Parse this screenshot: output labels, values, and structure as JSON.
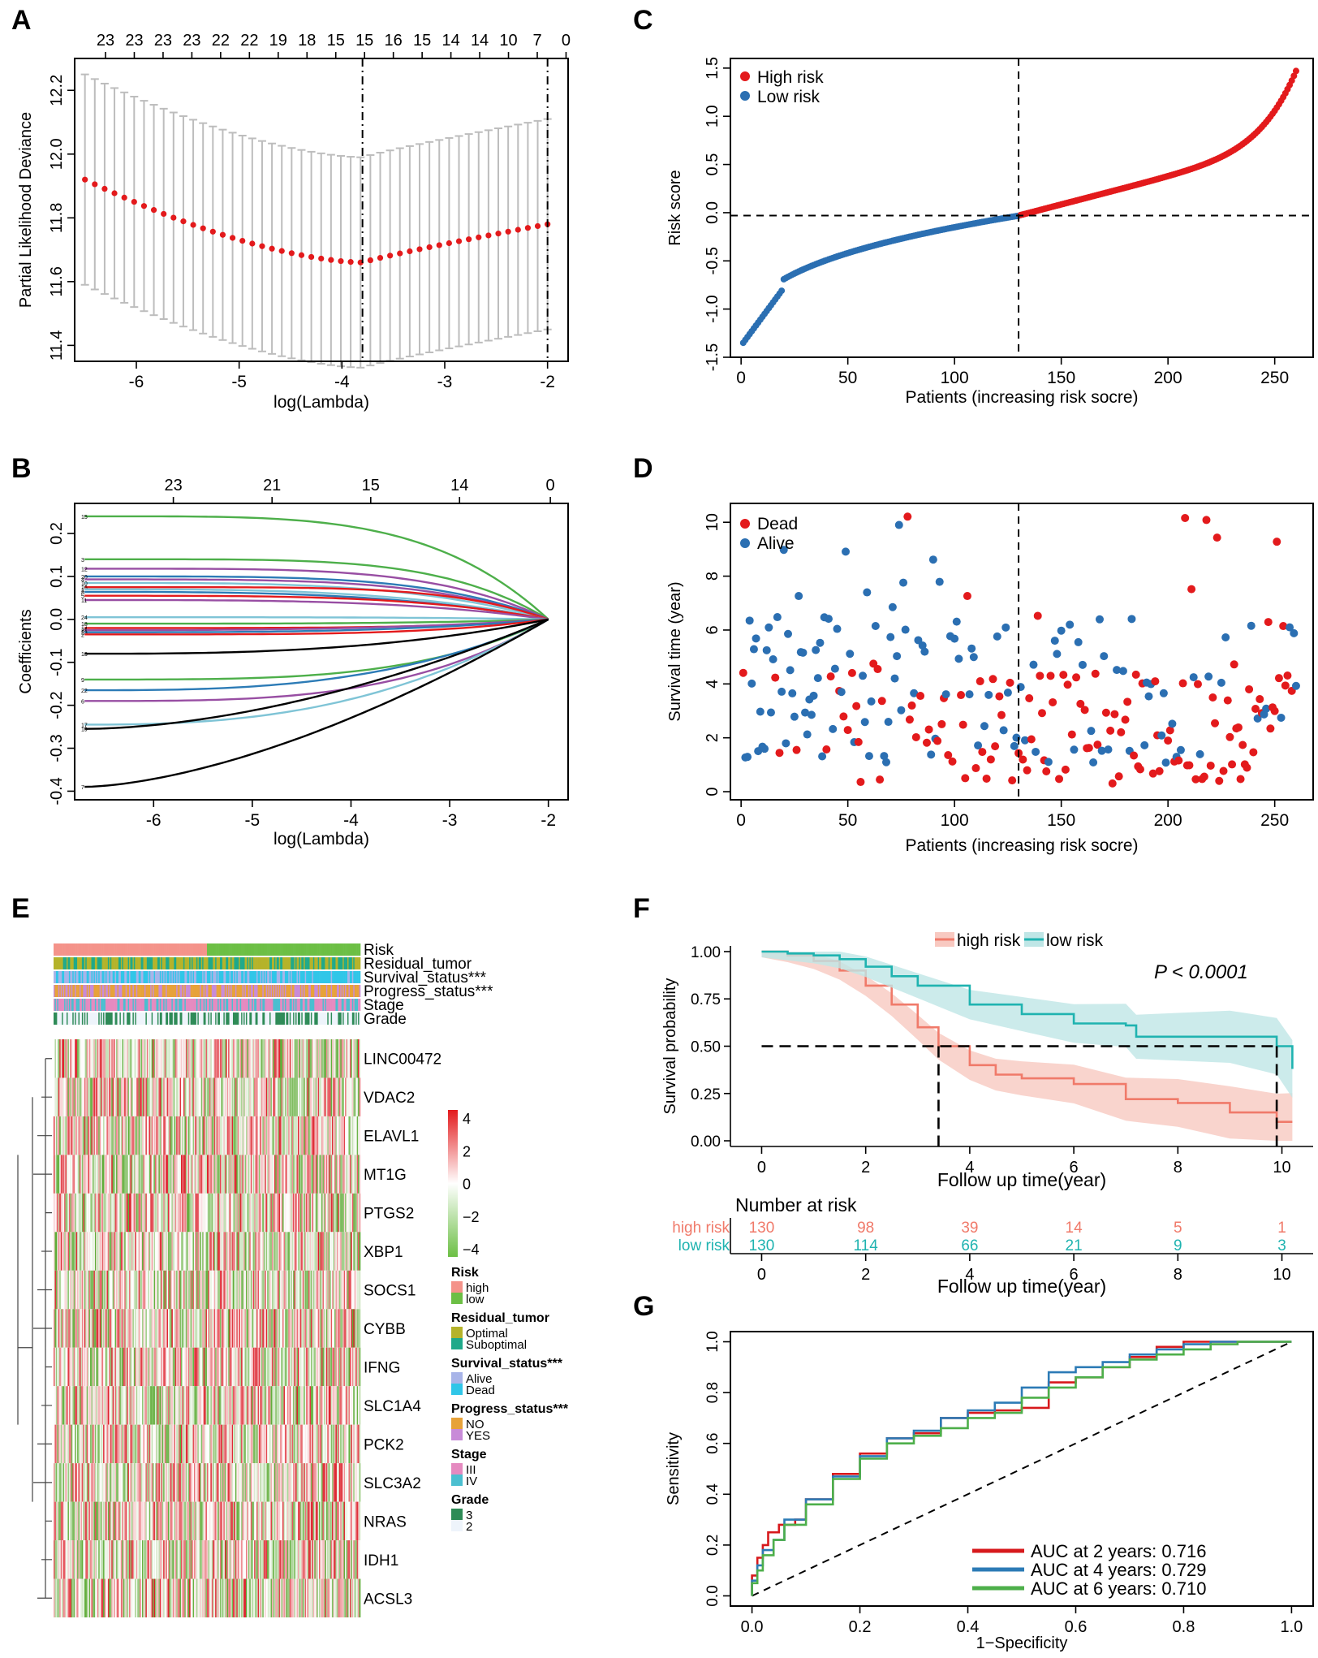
{
  "colors": {
    "red": "#e31a1c",
    "blue": "#2b6fb2",
    "gray": "#bdbdbd",
    "km_high": "#f07a6a",
    "km_low": "#1fb3b0",
    "km_high_band": "#f8c9c1",
    "km_low_band": "#bfe6e6",
    "roc_red": "#d7191c",
    "roc_blue": "#2c7bb6",
    "roc_green": "#4daf4a",
    "risk_high": "#f4938a",
    "risk_low": "#6cbf45"
  },
  "chart_data": [
    {
      "id": "A",
      "panel_label": "A",
      "type": "line",
      "xlabel": "log(Lambda)",
      "ylabel": "Partial Likelihood Deviance",
      "xlim": [
        -6.6,
        -1.8
      ],
      "ylim": [
        11.35,
        12.3
      ],
      "xticks": [
        "-6",
        "-5",
        "-4",
        "-3",
        "-2"
      ],
      "xtick_values": [
        -6,
        -5,
        -4,
        -3,
        -2
      ],
      "yticks": [
        "11.4",
        "11.6",
        "11.8",
        "12.0",
        "12.2"
      ],
      "ytick_values": [
        11.4,
        11.6,
        11.8,
        12.0,
        12.2
      ],
      "top_ticks": [
        "23",
        "23",
        "23",
        "23",
        "22",
        "22",
        "19",
        "18",
        "15",
        "15",
        "16",
        "15",
        "14",
        "14",
        "10",
        "7",
        "0"
      ],
      "top_tick_values": [
        -6.3,
        -6.02,
        -5.74,
        -5.46,
        -5.18,
        -4.9,
        -4.62,
        -4.34,
        -4.06,
        -3.78,
        -3.5,
        -3.22,
        -2.94,
        -2.66,
        -2.38,
        -2.1,
        -1.82
      ],
      "x_start": -6.5,
      "x_end": -2.0,
      "n_points": 48,
      "mean_min": {
        "x": -3.8,
        "y": 11.66
      },
      "mean_start": 11.92,
      "mean_end": 11.78,
      "ci_halfwidth_start": 0.33,
      "ci_halfwidth_min": 0.3,
      "ci_halfwidth_end": 0.3,
      "vlines": [
        -3.8,
        -2.0
      ]
    },
    {
      "id": "B",
      "panel_label": "B",
      "type": "line",
      "xlabel": "log(Lambda)",
      "ylabel": "Coefficients",
      "xlim": [
        -6.8,
        -1.8
      ],
      "ylim": [
        -0.42,
        0.27
      ],
      "xticks": [
        "-6",
        "-5",
        "-4",
        "-3",
        "-2"
      ],
      "xtick_values": [
        -6,
        -5,
        -4,
        -3,
        -2
      ],
      "yticks": [
        "-0.4",
        "-0.3",
        "-0.2",
        "-0.1",
        "0.0",
        "0.1",
        "0.2"
      ],
      "ytick_values": [
        -0.4,
        -0.3,
        -0.2,
        -0.1,
        0.0,
        0.1,
        0.2
      ],
      "top_ticks": [
        "23",
        "21",
        "15",
        "14",
        "0"
      ],
      "top_tick_values": [
        -5.8,
        -4.8,
        -3.8,
        -2.9,
        -1.98
      ],
      "x_start": -6.7,
      "x_end": -2.0,
      "series": [
        {
          "name": "15",
          "color": "#4daf4a",
          "start": 0.24,
          "fade": 2.6
        },
        {
          "name": "3",
          "color": "#4daf4a",
          "start": 0.14,
          "fade": 2.9
        },
        {
          "name": "12",
          "color": "#984ea3",
          "start": 0.118,
          "fade": 2.7
        },
        {
          "name": "20",
          "color": "#2c7bb6",
          "start": 0.1,
          "fade": 2.6
        },
        {
          "name": "4",
          "color": "#984ea3",
          "start": 0.093,
          "fade": 2.5
        },
        {
          "name": "10",
          "color": "#7fc4d6",
          "start": 0.085,
          "fade": 2.2
        },
        {
          "name": "16",
          "color": "#e31a1c",
          "start": 0.075,
          "fade": 3.2
        },
        {
          "name": "1",
          "color": "#7fc4d6",
          "start": 0.07,
          "fade": 2.0
        },
        {
          "name": "8",
          "color": "#2c7bb6",
          "start": 0.064,
          "fade": 1.9
        },
        {
          "name": "5",
          "color": "#e31a1c",
          "start": 0.055,
          "fade": 2.3
        },
        {
          "name": "11",
          "color": "#984ea3",
          "start": 0.045,
          "fade": 2.1
        },
        {
          "name": "24",
          "color": "#7fc4d6",
          "start": 0.005,
          "fade": 2.4
        },
        {
          "name": "18",
          "color": "#4daf4a",
          "start": -0.01,
          "fade": 2.2
        },
        {
          "name": "14",
          "color": "#e31a1c",
          "start": -0.02,
          "fade": 2.8
        },
        {
          "name": "21",
          "color": "#984ea3",
          "start": -0.025,
          "fade": 1.8
        },
        {
          "name": "23",
          "color": "#2c7bb6",
          "start": -0.03,
          "fade": 2.0
        },
        {
          "name": "2",
          "color": "#e31a1c",
          "start": -0.035,
          "fade": 2.6
        },
        {
          "name": "13",
          "color": "#000000",
          "start": -0.08,
          "fade": 1.7
        },
        {
          "name": "9",
          "color": "#4daf4a",
          "start": -0.14,
          "fade": 2.3
        },
        {
          "name": "22",
          "color": "#2c7bb6",
          "start": -0.165,
          "fade": 1.8
        },
        {
          "name": "6",
          "color": "#984ea3",
          "start": -0.19,
          "fade": 2.1
        },
        {
          "name": "17",
          "color": "#7fc4d6",
          "start": -0.245,
          "fade": 1.6
        },
        {
          "name": "19",
          "color": "#000000",
          "start": -0.255,
          "fade": 1.1
        },
        {
          "name": "7",
          "color": "#000000",
          "start": -0.39,
          "fade": 1.0
        }
      ]
    },
    {
      "id": "C",
      "panel_label": "C",
      "type": "scatter",
      "xlabel": "Patients (increasing risk socre)",
      "ylabel": "Risk score",
      "xlim": [
        -5,
        268
      ],
      "ylim": [
        -1.5,
        1.6
      ],
      "xticks": [
        "0",
        "50",
        "100",
        "150",
        "200",
        "250"
      ],
      "xtick_values": [
        0,
        50,
        100,
        150,
        200,
        250
      ],
      "yticks": [
        "-1.5",
        "-1.0",
        "-0.5",
        "0.0",
        "0.5",
        "1.0",
        "1.5"
      ],
      "ytick_values": [
        -1.5,
        -1.0,
        -0.5,
        0.0,
        0.5,
        1.0,
        1.5
      ],
      "n_patients": 260,
      "cutoff_index": 130,
      "cutoff_value": -0.03,
      "legend": [
        "High risk",
        "Low risk"
      ],
      "legend_position": "top-left"
    },
    {
      "id": "D",
      "panel_label": "D",
      "type": "scatter",
      "xlabel": "Patients (increasing risk socre)",
      "ylabel": "Survival time (year)",
      "xlim": [
        -5,
        268
      ],
      "ylim": [
        -0.3,
        10.7
      ],
      "xticks": [
        "0",
        "50",
        "100",
        "150",
        "200",
        "250"
      ],
      "xtick_values": [
        0,
        50,
        100,
        150,
        200,
        250
      ],
      "yticks": [
        "0",
        "2",
        "4",
        "6",
        "8",
        "10"
      ],
      "ytick_values": [
        0,
        2,
        4,
        6,
        8,
        10
      ],
      "n_patients": 260,
      "cutoff_index": 130,
      "legend": [
        "Dead",
        "Alive"
      ],
      "legend_position": "top-left"
    },
    {
      "id": "E",
      "panel_label": "E",
      "type": "heatmap",
      "annotation_rows": [
        "Risk",
        "Residual_tumor",
        "Survival_status***",
        "Progress_status***",
        "Stage",
        "Grade"
      ],
      "genes": [
        "LINC00472",
        "VDAC2",
        "ELAVL1",
        "MT1G",
        "PTGS2",
        "XBP1",
        "SOCS1",
        "CYBB",
        "IFNG",
        "SLC1A4",
        "PCK2",
        "SLC3A2",
        "NRAS",
        "IDH1",
        "ACSL3"
      ],
      "scale_ticks": [
        "4",
        "2",
        "0",
        "−2",
        "−4"
      ],
      "scale_values": [
        4,
        2,
        0,
        -2,
        -4
      ],
      "legend_groups": [
        {
          "title": "Risk",
          "items": [
            "high",
            "low"
          ],
          "colors": [
            "#f4938a",
            "#6cbf45"
          ]
        },
        {
          "title": "Residual_tumor",
          "items": [
            "Optimal",
            "Suboptimal"
          ],
          "colors": [
            "#b5b32a",
            "#1fa98a"
          ]
        },
        {
          "title": "Survival_status***",
          "items": [
            "Alive",
            "Dead"
          ],
          "colors": [
            "#a8b4e8",
            "#30c6e8"
          ]
        },
        {
          "title": "Progress_status***",
          "items": [
            "NO",
            "YES"
          ],
          "colors": [
            "#e7a23a",
            "#c88bd8"
          ]
        },
        {
          "title": "Stage",
          "items": [
            "III",
            "IV"
          ],
          "colors": [
            "#e58ac0",
            "#4bbfd0"
          ]
        },
        {
          "title": "Grade",
          "items": [
            "3",
            "2"
          ],
          "colors": [
            "#2e8b57",
            "#eef4fb"
          ]
        }
      ],
      "n_samples": 260
    },
    {
      "id": "F",
      "panel_label": "F",
      "type": "line",
      "xlabel": "Follow up time(year)",
      "ylabel": "Survival probability",
      "xlim": [
        -0.6,
        10.6
      ],
      "ylim": [
        -0.03,
        1.03
      ],
      "xticks": [
        "0",
        "2",
        "4",
        "6",
        "8",
        "10"
      ],
      "xtick_values": [
        0,
        2,
        4,
        6,
        8,
        10
      ],
      "yticks": [
        "0.00",
        "0.25",
        "0.50",
        "0.75",
        "1.00"
      ],
      "ytick_values": [
        0,
        0.25,
        0.5,
        0.75,
        1.0
      ],
      "legend": [
        "high risk",
        "low risk"
      ],
      "legend_position": "top-center",
      "p_value": "P < 0.0001",
      "series": [
        {
          "name": "high risk",
          "x": [
            0,
            0.5,
            1,
            1.5,
            2,
            2.5,
            3,
            3.4,
            4,
            4.5,
            5,
            6,
            7,
            8,
            9,
            9.9,
            10.2
          ],
          "y": [
            1.0,
            0.98,
            0.95,
            0.9,
            0.82,
            0.72,
            0.6,
            0.5,
            0.4,
            0.35,
            0.33,
            0.3,
            0.22,
            0.2,
            0.15,
            0.1,
            0.1
          ]
        },
        {
          "name": "low risk",
          "x": [
            0,
            0.5,
            1,
            1.5,
            2,
            2.5,
            3,
            4,
            5,
            6,
            7,
            7.2,
            8,
            9,
            9.9,
            10.2
          ],
          "y": [
            1.0,
            0.99,
            0.98,
            0.96,
            0.92,
            0.87,
            0.82,
            0.72,
            0.67,
            0.62,
            0.61,
            0.55,
            0.55,
            0.55,
            0.5,
            0.38
          ]
        }
      ],
      "median_lines": {
        "y": 0.5,
        "x_high": 3.4,
        "x_low": 9.9
      },
      "risk_table": {
        "title": "Number at risk",
        "rows": [
          {
            "label": "high risk",
            "values": [
              "130",
              "98",
              "39",
              "14",
              "5",
              "1"
            ]
          },
          {
            "label": "low risk",
            "values": [
              "130",
              "114",
              "66",
              "21",
              "9",
              "3"
            ]
          }
        ],
        "xlabel": "Follow up time(year)"
      }
    },
    {
      "id": "G",
      "panel_label": "G",
      "type": "line",
      "xlabel": "1−Specificity",
      "ylabel": "Sensitivity",
      "xlim": [
        -0.04,
        1.04
      ],
      "ylim": [
        -0.04,
        1.04
      ],
      "xticks": [
        "0.0",
        "0.2",
        "0.4",
        "0.6",
        "0.8",
        "1.0"
      ],
      "xtick_values": [
        0,
        0.2,
        0.4,
        0.6,
        0.8,
        1.0
      ],
      "yticks": [
        "0.0",
        "0.2",
        "0.4",
        "0.6",
        "0.8",
        "1.0"
      ],
      "ytick_values": [
        0,
        0.2,
        0.4,
        0.6,
        0.8,
        1.0
      ],
      "legend_position": "bottom-right",
      "series": [
        {
          "name": "AUC at 2 years: 0.716",
          "auc": 0.716,
          "color": "#d7191c",
          "x": [
            0,
            0.01,
            0.02,
            0.03,
            0.05,
            0.08,
            0.1,
            0.15,
            0.2,
            0.25,
            0.3,
            0.35,
            0.4,
            0.45,
            0.5,
            0.55,
            0.6,
            0.65,
            0.7,
            0.75,
            0.8,
            0.85,
            0.9,
            1.0
          ],
          "y": [
            0,
            0.08,
            0.15,
            0.2,
            0.25,
            0.28,
            0.3,
            0.38,
            0.48,
            0.56,
            0.62,
            0.64,
            0.7,
            0.72,
            0.73,
            0.74,
            0.84,
            0.86,
            0.9,
            0.94,
            0.98,
            1.0,
            1.0,
            1.0
          ]
        },
        {
          "name": "AUC at 4 years: 0.729",
          "auc": 0.729,
          "color": "#2c7bb6",
          "x": [
            0,
            0.01,
            0.02,
            0.04,
            0.06,
            0.1,
            0.15,
            0.2,
            0.25,
            0.3,
            0.35,
            0.4,
            0.45,
            0.5,
            0.55,
            0.6,
            0.65,
            0.7,
            0.75,
            0.8,
            0.85,
            0.9,
            1.0
          ],
          "y": [
            0,
            0.06,
            0.12,
            0.18,
            0.22,
            0.3,
            0.38,
            0.47,
            0.55,
            0.62,
            0.65,
            0.7,
            0.73,
            0.76,
            0.82,
            0.88,
            0.9,
            0.92,
            0.95,
            0.97,
            0.99,
            1.0,
            1.0
          ]
        },
        {
          "name": "AUC at 6 years: 0.710",
          "auc": 0.71,
          "color": "#4daf4a",
          "x": [
            0,
            0.01,
            0.02,
            0.04,
            0.06,
            0.1,
            0.15,
            0.2,
            0.25,
            0.3,
            0.35,
            0.4,
            0.45,
            0.5,
            0.55,
            0.6,
            0.65,
            0.7,
            0.75,
            0.8,
            0.85,
            0.9,
            1.0
          ],
          "y": [
            0,
            0.05,
            0.1,
            0.16,
            0.22,
            0.28,
            0.36,
            0.46,
            0.54,
            0.6,
            0.63,
            0.66,
            0.7,
            0.72,
            0.78,
            0.82,
            0.86,
            0.9,
            0.93,
            0.95,
            0.97,
            0.99,
            1.0
          ]
        }
      ]
    }
  ]
}
